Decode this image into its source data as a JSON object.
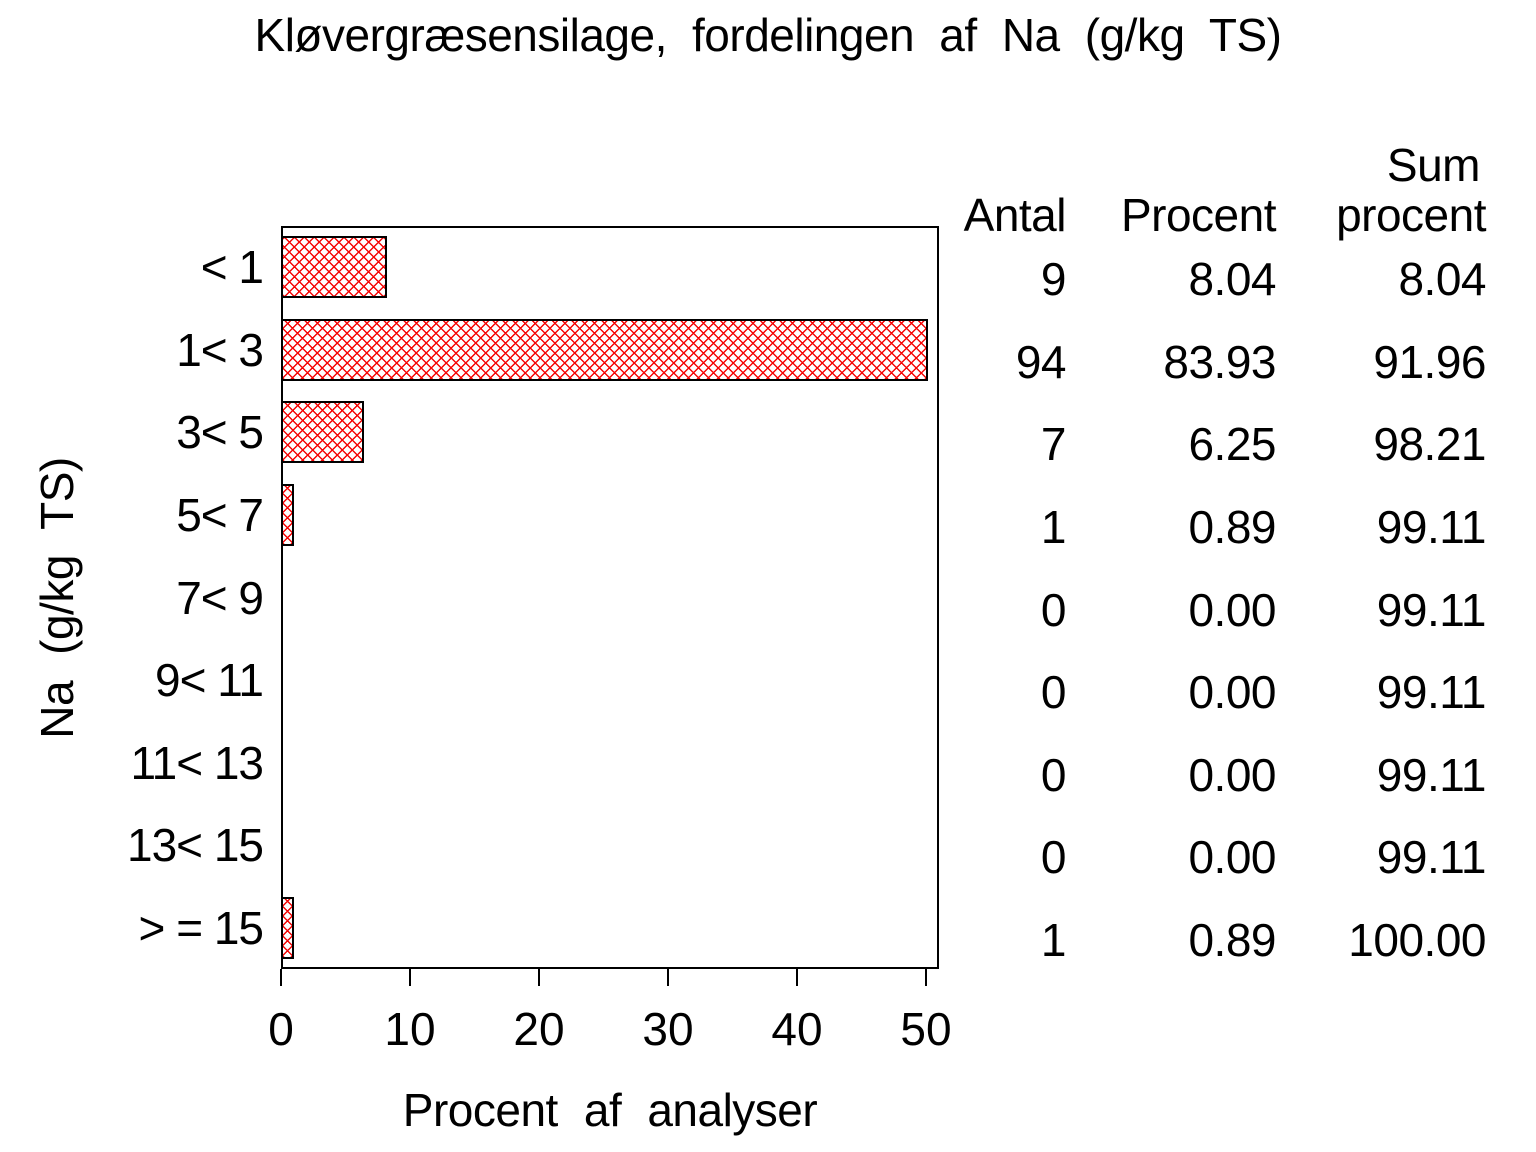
{
  "title": "Kløvergræsensilage, fordelingen af Na (g/kg TS)",
  "colors": {
    "hatch_red": "#f50707",
    "bar_border": "#000000",
    "axis": "#000000",
    "background": "#ffffff"
  },
  "chart_data": {
    "type": "bar",
    "orientation": "horizontal",
    "title": "Kløvergræsensilage, fordelingen af Na (g/kg TS)",
    "xlabel": "Procent af analyser",
    "ylabel": "Na (g/kg TS)",
    "xlim": [
      0,
      50
    ],
    "xticks": [
      0,
      10,
      20,
      30,
      40,
      50
    ],
    "grid": false,
    "legend": false,
    "bar_pattern": "red-crosshatch",
    "clip_bars_at_xmax": true,
    "categories": [
      "< 1",
      "1< 3",
      "3< 5",
      "5< 7",
      "7< 9",
      "9< 11",
      "11< 13",
      "13< 15",
      "> = 15"
    ],
    "series": [
      {
        "name": "Procent af analyser",
        "values": [
          8.04,
          83.93,
          6.25,
          0.89,
          0.0,
          0.0,
          0.0,
          0.0,
          0.89
        ]
      }
    ]
  },
  "table": {
    "headers": {
      "col1": "Antal",
      "col2": "Procent",
      "col3_line1": "Sum",
      "col3_line2": "procent"
    },
    "rows": [
      [
        "9",
        "8.04",
        "8.04"
      ],
      [
        "94",
        "83.93",
        "91.96"
      ],
      [
        "7",
        "6.25",
        "98.21"
      ],
      [
        "1",
        "0.89",
        "99.11"
      ],
      [
        "0",
        "0.00",
        "99.11"
      ],
      [
        "0",
        "0.00",
        "99.11"
      ],
      [
        "0",
        "0.00",
        "99.11"
      ],
      [
        "0",
        "0.00",
        "99.11"
      ],
      [
        "1",
        "0.89",
        "100.00"
      ]
    ]
  }
}
